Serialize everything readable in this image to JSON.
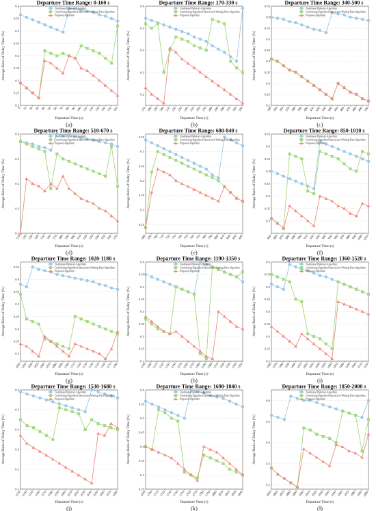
{
  "figure": {
    "colors": {
      "traditional": "#9dc8e6",
      "considering": "#a3d97f",
      "proposed": "#f08c80"
    },
    "legend": [
      "Traditional Dijkstra's Algorithm",
      "Considering Signalized Intersection Waiting Time Algorithm",
      "Proposed Algorithm"
    ],
    "xlabel": "Departure Time (s)",
    "ylabel": "Average Ratio of Delay Time (%)"
  },
  "chart_data": [
    {
      "type": "line",
      "label": "(a)",
      "title": "Departure Time Range: 0-160 s",
      "x": [
        0,
        10,
        20,
        30,
        40,
        50,
        60,
        70,
        80,
        90,
        100,
        110,
        120,
        130,
        140,
        150,
        160
      ],
      "ylim": [
        0.2,
        0.6
      ],
      "yticks": [
        0.2,
        0.25,
        0.3,
        0.35,
        0.4,
        0.45,
        0.5,
        0.55,
        0.6
      ],
      "series": [
        {
          "values": [
            0.565,
            0.555,
            0.545,
            0.535,
            0.525,
            0.515,
            0.505,
            0.495,
            0.59,
            0.59,
            0.585,
            0.58,
            0.575,
            0.565,
            0.56,
            0.55,
            0.54
          ]
        },
        {
          "values": [
            0.29,
            0.27,
            0.25,
            0.23,
            0.42,
            0.41,
            0.4,
            0.41,
            0.4,
            0.39,
            0.44,
            0.43,
            0.42,
            0.41,
            0.39,
            0.37,
            0.52
          ]
        },
        {
          "values": [
            0.29,
            0.27,
            0.25,
            0.23,
            0.38,
            0.37,
            0.35,
            0.33,
            0.4,
            0.39,
            0.35,
            0.34,
            0.32,
            0.3,
            0.28,
            0.26,
            0.24
          ]
        }
      ]
    },
    {
      "type": "line",
      "label": "(b)",
      "title": "Departure Time Range: 170-330 s",
      "x": [
        170,
        180,
        190,
        200,
        210,
        220,
        230,
        240,
        250,
        260,
        270,
        280,
        290,
        300,
        310,
        320,
        330
      ],
      "ylim": [
        0.15,
        0.6
      ],
      "yticks": [
        0.2,
        0.3,
        0.4,
        0.5,
        0.6
      ],
      "series": [
        {
          "values": [
            0.545,
            0.535,
            0.525,
            0.515,
            0.505,
            0.495,
            0.485,
            0.475,
            0.46,
            0.45,
            0.44,
            0.42,
            0.405,
            0.39,
            0.37,
            0.35,
            0.59
          ]
        },
        {
          "values": [
            0.52,
            0.5,
            0.52,
            0.3,
            0.4,
            0.46,
            0.45,
            0.44,
            0.42,
            0.41,
            0.4,
            0.54,
            0.53,
            0.52,
            0.35,
            0.32,
            0.3
          ]
        },
        {
          "values": [
            0.23,
            0.2,
            0.18,
            0.16,
            0.41,
            0.39,
            0.36,
            0.34,
            0.32,
            0.3,
            0.28,
            0.26,
            0.24,
            0.22,
            0.2,
            0.18,
            0.16
          ]
        }
      ]
    },
    {
      "type": "line",
      "label": "(c)",
      "title": "Departure Time Range: 340-500 s",
      "x": [
        340,
        350,
        360,
        370,
        380,
        390,
        400,
        410,
        420,
        430,
        440,
        450,
        460,
        470,
        480,
        490,
        500
      ],
      "ylim": [
        0.2,
        0.65
      ],
      "yticks": [
        0.2,
        0.25,
        0.3,
        0.35,
        0.4,
        0.45,
        0.5,
        0.55,
        0.6,
        0.65
      ],
      "series": [
        {
          "values": [
            0.6,
            0.595,
            0.59,
            0.58,
            0.575,
            0.565,
            0.555,
            0.545,
            0.54,
            0.53,
            0.62,
            0.615,
            0.61,
            0.6,
            0.595,
            0.59,
            0.585
          ]
        },
        {
          "values": [
            0.41,
            0.4,
            0.38,
            0.36,
            0.35,
            0.33,
            0.31,
            0.29,
            0.27,
            0.25,
            0.23,
            0.3,
            0.28,
            0.26,
            0.25,
            0.23,
            0.22
          ]
        },
        {
          "values": [
            0.41,
            0.4,
            0.38,
            0.36,
            0.35,
            0.33,
            0.31,
            0.29,
            0.27,
            0.25,
            0.23,
            0.3,
            0.28,
            0.26,
            0.25,
            0.23,
            0.22
          ]
        }
      ]
    },
    {
      "type": "line",
      "label": "(d)",
      "title": "Departure Time Range: 510-670 s",
      "x": [
        510,
        520,
        530,
        540,
        550,
        560,
        570,
        580,
        590,
        600,
        610,
        620,
        630,
        640,
        650,
        660,
        670
      ],
      "ylim": [
        0.2,
        0.6
      ],
      "yticks": [
        0.2,
        0.3,
        0.4,
        0.5,
        0.6
      ],
      "series": [
        {
          "values": [
            0.57,
            0.565,
            0.56,
            0.55,
            0.545,
            0.535,
            0.6,
            0.595,
            0.6,
            0.59,
            0.585,
            0.58,
            0.575,
            0.57,
            0.565,
            0.56,
            0.55
          ]
        },
        {
          "values": [
            0.57,
            0.56,
            0.55,
            0.54,
            0.53,
            0.38,
            0.52,
            0.5,
            0.49,
            0.48,
            0.47,
            0.46,
            0.45,
            0.44,
            0.43,
            0.55,
            0.39
          ]
        },
        {
          "values": [
            0.2,
            0.42,
            0.4,
            0.39,
            0.37,
            0.4,
            0.38,
            0.43,
            0.38,
            0.36,
            0.34,
            0.33,
            0.32,
            0.3,
            0.29,
            0.27,
            0.25
          ]
        }
      ]
    },
    {
      "type": "line",
      "label": "(e)",
      "title": "Departure Time Range: 680-840 s",
      "x": [
        680,
        690,
        700,
        710,
        720,
        730,
        740,
        750,
        760,
        770,
        780,
        790,
        800,
        810,
        820,
        830,
        840
      ],
      "ylim": [
        0.22,
        0.56
      ],
      "yticks": [
        0.25,
        0.3,
        0.35,
        0.4,
        0.45,
        0.5,
        0.55
      ],
      "series": [
        {
          "values": [
            0.54,
            0.53,
            0.52,
            0.51,
            0.5,
            0.49,
            0.48,
            0.47,
            0.46,
            0.45,
            0.44,
            0.42,
            0.41,
            0.55,
            0.54,
            0.53,
            0.52
          ]
        },
        {
          "values": [
            0.24,
            0.43,
            0.5,
            0.49,
            0.48,
            0.47,
            0.46,
            0.45,
            0.44,
            0.43,
            0.42,
            0.41,
            0.4,
            0.38,
            0.36,
            0.34,
            0.33
          ]
        },
        {
          "values": [
            0.24,
            0.36,
            0.44,
            0.43,
            0.42,
            0.4,
            0.39,
            0.38,
            0.37,
            0.36,
            0.35,
            0.34,
            0.33,
            0.38,
            0.36,
            0.34,
            0.33
          ]
        }
      ]
    },
    {
      "type": "line",
      "label": "(f)",
      "title": "Departure Time Range: 850-1010 s",
      "x": [
        850,
        860,
        870,
        880,
        890,
        900,
        910,
        920,
        930,
        940,
        950,
        960,
        970,
        980,
        990,
        1000,
        1010
      ],
      "ylim": [
        0.25,
        0.65
      ],
      "yticks": [
        0.3,
        0.35,
        0.4,
        0.45,
        0.5,
        0.55,
        0.6,
        0.65
      ],
      "series": [
        {
          "values": [
            0.5,
            0.49,
            0.48,
            0.47,
            0.46,
            0.45,
            0.44,
            0.43,
            0.62,
            0.61,
            0.6,
            0.59,
            0.58,
            0.57,
            0.56,
            0.55,
            0.54
          ]
        },
        {
          "values": [
            0.31,
            0.29,
            0.27,
            0.57,
            0.56,
            0.55,
            0.42,
            0.41,
            0.58,
            0.57,
            0.56,
            0.55,
            0.53,
            0.51,
            0.5,
            0.58,
            0.57
          ]
        },
        {
          "values": [
            0.31,
            0.29,
            0.27,
            0.36,
            0.34,
            0.32,
            0.3,
            0.28,
            0.4,
            0.39,
            0.38,
            0.36,
            0.35,
            0.33,
            0.32,
            0.37,
            0.36
          ]
        }
      ]
    },
    {
      "type": "line",
      "label": "(g)",
      "title": "Departure Time Range: 1020-1180 s",
      "x": [
        1020,
        1030,
        1040,
        1050,
        1060,
        1070,
        1080,
        1090,
        1100,
        1110,
        1120,
        1130,
        1140,
        1150,
        1160,
        1170,
        1180
      ],
      "ylim": [
        0.27,
        0.67
      ],
      "yticks": [
        0.3,
        0.35,
        0.4,
        0.45,
        0.5,
        0.55,
        0.6,
        0.65
      ],
      "series": [
        {
          "values": [
            0.58,
            0.57,
            0.65,
            0.64,
            0.635,
            0.63,
            0.62,
            0.615,
            0.61,
            0.605,
            0.6,
            0.595,
            0.59,
            0.58,
            0.575,
            0.565,
            0.56
          ]
        },
        {
          "values": [
            0.54,
            0.44,
            0.43,
            0.42,
            0.36,
            0.35,
            0.34,
            0.33,
            0.32,
            0.45,
            0.44,
            0.43,
            0.42,
            0.41,
            0.4,
            0.39,
            0.38
          ]
        },
        {
          "values": [
            0.34,
            0.33,
            0.31,
            0.29,
            0.37,
            0.35,
            0.33,
            0.31,
            0.29,
            0.34,
            0.33,
            0.32,
            0.31,
            0.3,
            0.28,
            0.32,
            0.39
          ]
        }
      ]
    },
    {
      "type": "line",
      "label": "(h)",
      "title": "Departure Time Range: 1190-1350 s",
      "x": [
        1190,
        1200,
        1210,
        1220,
        1230,
        1240,
        1250,
        1260,
        1270,
        1280,
        1290,
        1300,
        1310,
        1320,
        1330,
        1340,
        1350
      ],
      "ylim": [
        0.2,
        0.6
      ],
      "yticks": [
        0.2,
        0.25,
        0.3,
        0.35,
        0.4,
        0.45,
        0.5,
        0.55,
        0.6
      ],
      "series": [
        {
          "values": [
            0.55,
            0.54,
            0.53,
            0.52,
            0.51,
            0.5,
            0.49,
            0.48,
            0.47,
            0.6,
            0.59,
            0.58,
            0.57,
            0.56,
            0.55,
            0.54,
            0.52
          ]
        },
        {
          "values": [
            0.37,
            0.35,
            0.33,
            0.32,
            0.31,
            0.5,
            0.49,
            0.48,
            0.47,
            0.23,
            0.21,
            0.58,
            0.57,
            0.56,
            0.55,
            0.54,
            0.56
          ]
        },
        {
          "values": [
            0.38,
            0.36,
            0.34,
            0.32,
            0.31,
            0.32,
            0.3,
            0.28,
            0.26,
            0.24,
            0.22,
            0.21,
            0.4,
            0.38,
            0.36,
            0.34,
            0.33
          ]
        }
      ]
    },
    {
      "type": "line",
      "label": "(i)",
      "title": "Departure Time Range: 1360-1520 s",
      "x": [
        1360,
        1370,
        1380,
        1390,
        1400,
        1410,
        1420,
        1430,
        1440,
        1450,
        1460,
        1470,
        1480,
        1490,
        1500,
        1510,
        1520
      ],
      "ylim": [
        0.2,
        0.6
      ],
      "yticks": [
        0.2,
        0.25,
        0.3,
        0.35,
        0.4,
        0.45,
        0.5,
        0.55,
        0.6
      ],
      "series": [
        {
          "values": [
            0.51,
            0.5,
            0.49,
            0.59,
            0.58,
            0.57,
            0.565,
            0.555,
            0.545,
            0.54,
            0.53,
            0.52,
            0.51,
            0.5,
            0.49,
            0.48,
            0.47
          ]
        },
        {
          "values": [
            0.55,
            0.54,
            0.53,
            0.52,
            0.45,
            0.44,
            0.31,
            0.3,
            0.29,
            0.27,
            0.25,
            0.52,
            0.51,
            0.5,
            0.49,
            0.48,
            0.47
          ]
        },
        {
          "values": [
            0.34,
            0.32,
            0.3,
            0.28,
            0.26,
            0.31,
            0.29,
            0.27,
            0.25,
            0.23,
            0.21,
            0.44,
            0.43,
            0.42,
            0.41,
            0.4,
            0.39
          ]
        }
      ]
    },
    {
      "type": "line",
      "label": "(j)",
      "title": "Departure Time Range: 1530-1680 s",
      "x": [
        1530,
        1540,
        1550,
        1560,
        1570,
        1580,
        1590,
        1600,
        1610,
        1620,
        1630,
        1640,
        1650,
        1660,
        1670,
        1680
      ],
      "ylim": [
        0.1,
        0.6
      ],
      "yticks": [
        0.1,
        0.2,
        0.3,
        0.4,
        0.5,
        0.6
      ],
      "series": [
        {
          "values": [
            0.59,
            0.58,
            0.57,
            0.56,
            0.55,
            0.54,
            0.53,
            0.52,
            0.51,
            0.5,
            0.49,
            0.6,
            0.59,
            0.58,
            0.57,
            0.56
          ]
        },
        {
          "values": [
            0.45,
            0.42,
            0.41,
            0.39,
            0.37,
            0.35,
            0.51,
            0.5,
            0.49,
            0.48,
            0.4,
            0.45,
            0.43,
            0.42,
            0.41,
            0.4
          ]
        },
        {
          "values": [
            0.37,
            0.33,
            0.31,
            0.29,
            0.27,
            0.25,
            0.23,
            0.21,
            0.19,
            0.17,
            0.15,
            0.13,
            0.38,
            0.37,
            0.43,
            0.41
          ]
        }
      ]
    },
    {
      "type": "line",
      "label": "(k)",
      "title": "Departure Time Range: 1690-1840 s",
      "x": [
        1690,
        1700,
        1710,
        1720,
        1730,
        1740,
        1750,
        1760,
        1770,
        1780,
        1790,
        1800,
        1810,
        1820,
        1830,
        1840
      ],
      "ylim": [
        0.25,
        0.6
      ],
      "yticks": [
        0.25,
        0.3,
        0.35,
        0.4,
        0.45,
        0.5,
        0.55,
        0.6
      ],
      "series": [
        {
          "values": [
            0.56,
            0.55,
            0.54,
            0.53,
            0.52,
            0.51,
            0.5,
            0.6,
            0.595,
            0.59,
            0.58,
            0.575,
            0.57,
            0.56,
            0.55,
            0.54
          ]
        },
        {
          "values": [
            0.4,
            0.39,
            0.53,
            0.52,
            0.5,
            0.49,
            0.31,
            0.3,
            0.29,
            0.37,
            0.36,
            0.35,
            0.34,
            0.32,
            0.31,
            0.3
          ]
        },
        {
          "values": [
            0.4,
            0.39,
            0.38,
            0.37,
            0.36,
            0.34,
            0.32,
            0.3,
            0.28,
            0.4,
            0.39,
            0.38,
            0.36,
            0.34,
            0.32,
            0.3
          ]
        }
      ]
    },
    {
      "type": "line",
      "label": "(l)",
      "title": "Departure Time Range: 1850-2000 s",
      "x": [
        1850,
        1860,
        1870,
        1880,
        1890,
        1900,
        1910,
        1920,
        1930,
        1940,
        1950,
        1960,
        1970,
        1980,
        1990,
        2000
      ],
      "ylim": [
        0.18,
        0.65
      ],
      "yticks": [
        0.2,
        0.3,
        0.4,
        0.5,
        0.6
      ],
      "series": [
        {
          "values": [
            0.53,
            0.52,
            0.51,
            0.62,
            0.61,
            0.6,
            0.6,
            0.59,
            0.58,
            0.57,
            0.56,
            0.55,
            0.54,
            0.53,
            0.52,
            0.6
          ]
        },
        {
          "values": [
            0.28,
            0.25,
            0.23,
            0.21,
            0.19,
            0.47,
            0.46,
            0.44,
            0.43,
            0.42,
            0.4,
            0.55,
            0.54,
            0.53,
            0.36,
            0.51
          ]
        },
        {
          "values": [
            0.28,
            0.25,
            0.23,
            0.21,
            0.19,
            0.37,
            0.35,
            0.33,
            0.31,
            0.29,
            0.39,
            0.38,
            0.36,
            0.35,
            0.33,
            0.44
          ]
        }
      ]
    }
  ]
}
